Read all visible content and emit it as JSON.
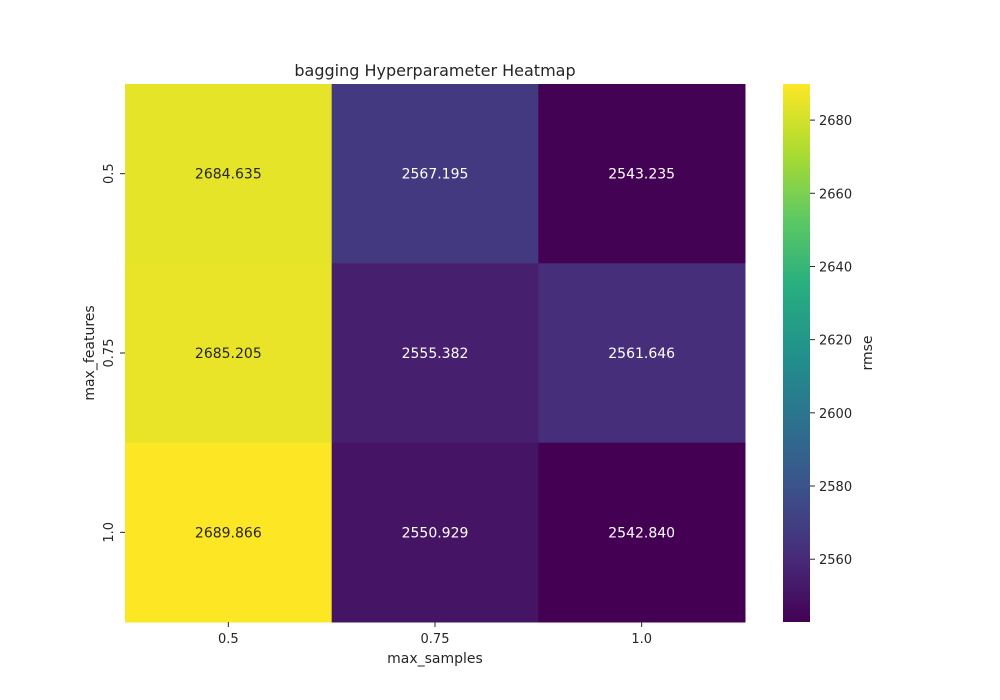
{
  "chart_data": {
    "type": "heatmap",
    "title": "bagging Hyperparameter Heatmap",
    "xlabel": "max_samples",
    "ylabel": "max_features",
    "x_categories": [
      "0.5",
      "0.75",
      "1.0"
    ],
    "y_categories": [
      "0.5",
      "0.75",
      "1.0"
    ],
    "values": [
      [
        2684.635,
        2567.195,
        2543.235
      ],
      [
        2685.205,
        2555.382,
        2561.646
      ],
      [
        2689.866,
        2550.929,
        2542.84
      ]
    ],
    "value_labels": [
      [
        "2684.635",
        "2567.195",
        "2543.235"
      ],
      [
        "2685.205",
        "2555.382",
        "2561.646"
      ],
      [
        "2689.866",
        "2550.929",
        "2542.840"
      ]
    ],
    "colormap": "viridis",
    "colorbar": {
      "label": "rmse",
      "min": 2542.84,
      "max": 2689.866,
      "ticks": [
        "2560",
        "2580",
        "2600",
        "2620",
        "2640",
        "2660",
        "2680"
      ]
    }
  }
}
